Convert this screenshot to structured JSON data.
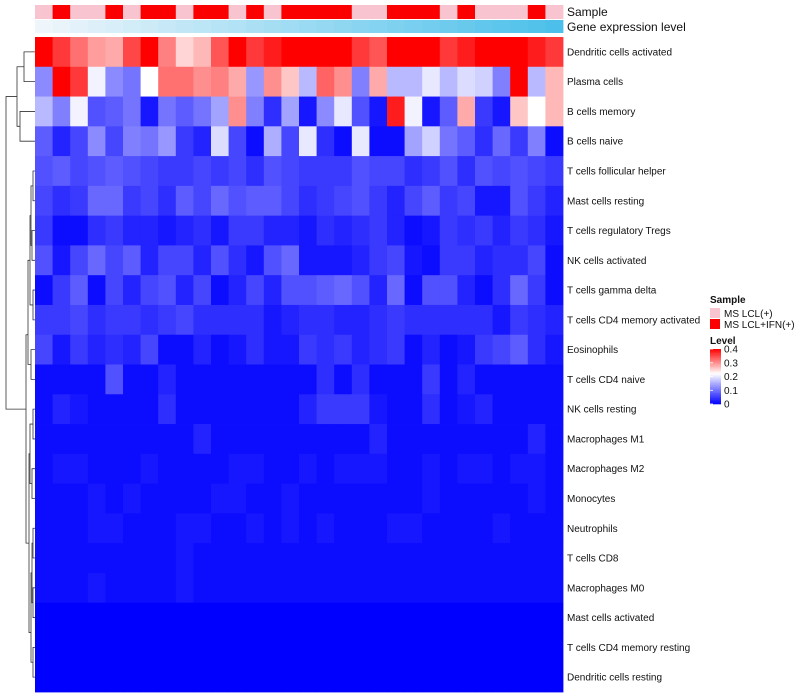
{
  "chart_data": {
    "type": "heatmap",
    "n_columns": 30,
    "rows": [
      "Dendritic cells activated",
      "Plasma cells",
      "B cells memory",
      "B cells naive",
      "T cells follicular helper",
      "Mast cells resting",
      "T cells regulatory  Tregs",
      "NK cells activated",
      "T cells gamma delta",
      "T cells CD4 memory activated",
      "Eosinophils",
      "T cells CD4 naive",
      "NK cells resting",
      "Macrophages M1",
      "Macrophages M2",
      "Monocytes",
      "Neutrophils",
      "T cells CD8",
      "Macrophages M0",
      "Mast cells activated",
      "T cells CD4 memory resting",
      "Dendritic cells resting"
    ],
    "values": [
      [
        0.42,
        0.36,
        0.32,
        0.29,
        0.28,
        0.35,
        0.4,
        0.31,
        0.25,
        0.27,
        0.34,
        0.42,
        0.36,
        0.38,
        0.4,
        0.42,
        0.4,
        0.46,
        0.36,
        0.34,
        0.4,
        0.42,
        0.4,
        0.36,
        0.38,
        0.42,
        0.44,
        0.4,
        0.38,
        0.36
      ],
      [
        0.12,
        0.43,
        0.36,
        0.21,
        0.12,
        0.1,
        0.22,
        0.32,
        0.32,
        0.3,
        0.31,
        0.28,
        0.13,
        0.3,
        0.26,
        0.16,
        0.33,
        0.3,
        0.11,
        0.28,
        0.16,
        0.16,
        0.2,
        0.16,
        0.19,
        0.18,
        0.11,
        0.44,
        0.16,
        0.27
      ],
      [
        0.16,
        0.11,
        0.21,
        0.07,
        0.08,
        0.1,
        0.02,
        0.1,
        0.08,
        0.1,
        0.14,
        0.3,
        0.11,
        0.04,
        0.14,
        0.02,
        0.12,
        0.2,
        0.07,
        0.02,
        0.38,
        0.21,
        0.02,
        0.08,
        0.28,
        0.05,
        0.02,
        0.26,
        0.22,
        0.27
      ],
      [
        0.08,
        0.03,
        0.06,
        0.12,
        0.06,
        0.11,
        0.1,
        0.13,
        0.05,
        0.03,
        0.19,
        0.06,
        0.01,
        0.15,
        0.06,
        0.2,
        0.04,
        0.01,
        0.2,
        0.01,
        0.01,
        0.14,
        0.18,
        0.1,
        0.08,
        0.04,
        0.09,
        0.05,
        0.11,
        0.01
      ],
      [
        0.07,
        0.08,
        0.06,
        0.07,
        0.08,
        0.07,
        0.06,
        0.05,
        0.05,
        0.06,
        0.05,
        0.06,
        0.04,
        0.07,
        0.06,
        0.05,
        0.05,
        0.05,
        0.07,
        0.06,
        0.06,
        0.04,
        0.05,
        0.07,
        0.04,
        0.07,
        0.06,
        0.07,
        0.06,
        0.05
      ],
      [
        0.06,
        0.04,
        0.05,
        0.09,
        0.09,
        0.05,
        0.06,
        0.04,
        0.08,
        0.06,
        0.09,
        0.07,
        0.08,
        0.08,
        0.06,
        0.04,
        0.05,
        0.06,
        0.07,
        0.05,
        0.03,
        0.06,
        0.08,
        0.05,
        0.06,
        0.02,
        0.02,
        0.07,
        0.05,
        0.03
      ],
      [
        0.05,
        0.01,
        0.01,
        0.04,
        0.05,
        0.03,
        0.03,
        0.02,
        0.03,
        0.04,
        0.02,
        0.05,
        0.05,
        0.03,
        0.03,
        0.02,
        0.04,
        0.03,
        0.04,
        0.05,
        0.03,
        0.01,
        0.02,
        0.05,
        0.04,
        0.05,
        0.03,
        0.05,
        0.04,
        0.02
      ],
      [
        0.07,
        0.02,
        0.06,
        0.09,
        0.06,
        0.08,
        0.03,
        0.06,
        0.06,
        0.03,
        0.07,
        0.04,
        0.02,
        0.07,
        0.09,
        0.02,
        0.02,
        0.02,
        0.03,
        0.05,
        0.06,
        0.02,
        0.01,
        0.05,
        0.05,
        0.03,
        0.04,
        0.04,
        0.06,
        0.01
      ],
      [
        0.01,
        0.05,
        0.08,
        0.01,
        0.06,
        0.03,
        0.06,
        0.07,
        0.03,
        0.06,
        0.01,
        0.03,
        0.06,
        0.03,
        0.07,
        0.07,
        0.08,
        0.09,
        0.07,
        0.03,
        0.09,
        0.01,
        0.07,
        0.07,
        0.03,
        0.01,
        0.04,
        0.09,
        0.05,
        0.01
      ],
      [
        0.05,
        0.05,
        0.06,
        0.04,
        0.05,
        0.05,
        0.04,
        0.05,
        0.06,
        0.04,
        0.04,
        0.04,
        0.04,
        0.02,
        0.03,
        0.04,
        0.04,
        0.03,
        0.03,
        0.04,
        0.05,
        0.04,
        0.04,
        0.04,
        0.04,
        0.04,
        0.02,
        0.05,
        0.04,
        0.03
      ],
      [
        0.06,
        0.02,
        0.05,
        0.03,
        0.04,
        0.03,
        0.06,
        0.01,
        0.01,
        0.03,
        0.01,
        0.02,
        0.04,
        0.02,
        0.02,
        0.05,
        0.04,
        0.05,
        0.03,
        0.04,
        0.05,
        0.01,
        0.03,
        0.01,
        0.02,
        0.05,
        0.06,
        0.08,
        0.04,
        0.02
      ],
      [
        0.01,
        0.01,
        0.01,
        0.01,
        0.07,
        0.01,
        0.01,
        0.03,
        0.01,
        0.01,
        0.01,
        0.01,
        0.01,
        0.01,
        0.01,
        0.01,
        0.04,
        0.01,
        0.04,
        0.01,
        0.01,
        0.01,
        0.05,
        0.01,
        0.03,
        0.01,
        0.01,
        0.01,
        0.01,
        0.01
      ],
      [
        0.01,
        0.03,
        0.02,
        0.01,
        0.01,
        0.01,
        0.01,
        0.04,
        0.01,
        0.01,
        0.01,
        0.01,
        0.01,
        0.01,
        0.01,
        0.03,
        0.05,
        0.05,
        0.05,
        0.02,
        0.01,
        0.01,
        0.04,
        0.01,
        0.02,
        0.03,
        0.01,
        0.01,
        0.01,
        0.01
      ],
      [
        0.01,
        0.01,
        0.01,
        0.01,
        0.01,
        0.01,
        0.01,
        0.01,
        0.01,
        0.03,
        0.01,
        0.01,
        0.01,
        0.01,
        0.01,
        0.01,
        0.01,
        0.01,
        0.01,
        0.03,
        0.01,
        0.01,
        0.01,
        0.01,
        0.01,
        0.01,
        0.01,
        0.01,
        0.03,
        0.01
      ],
      [
        0.01,
        0.02,
        0.02,
        0.01,
        0.01,
        0.01,
        0.02,
        0.01,
        0.01,
        0.01,
        0.01,
        0.02,
        0.02,
        0.01,
        0.01,
        0.02,
        0.01,
        0.02,
        0.02,
        0.02,
        0.01,
        0.01,
        0.02,
        0.01,
        0.02,
        0.02,
        0.01,
        0.02,
        0.02,
        0.01
      ],
      [
        0.01,
        0.01,
        0.01,
        0.02,
        0.01,
        0.02,
        0.01,
        0.01,
        0.01,
        0.01,
        0.02,
        0.02,
        0.01,
        0.01,
        0.02,
        0.01,
        0.01,
        0.01,
        0.01,
        0.01,
        0.01,
        0.01,
        0.02,
        0.01,
        0.01,
        0.01,
        0.01,
        0.01,
        0.02,
        0.01
      ],
      [
        0.01,
        0.01,
        0.01,
        0.02,
        0.02,
        0.01,
        0.01,
        0.01,
        0.02,
        0.02,
        0.01,
        0.01,
        0.02,
        0.01,
        0.02,
        0.01,
        0.02,
        0.01,
        0.01,
        0.01,
        0.02,
        0.02,
        0.01,
        0.01,
        0.01,
        0.01,
        0.02,
        0.01,
        0.01,
        0.01
      ],
      [
        0.01,
        0.01,
        0.01,
        0.01,
        0.01,
        0.01,
        0.01,
        0.01,
        0.02,
        0.01,
        0.01,
        0.01,
        0.01,
        0.01,
        0.01,
        0.01,
        0.01,
        0.01,
        0.01,
        0.01,
        0.01,
        0.01,
        0.01,
        0.01,
        0.01,
        0.01,
        0.01,
        0.01,
        0.01,
        0.01
      ],
      [
        0.01,
        0.01,
        0.01,
        0.02,
        0.01,
        0.01,
        0.01,
        0.01,
        0.02,
        0.01,
        0.01,
        0.01,
        0.01,
        0.01,
        0.01,
        0.01,
        0.01,
        0.01,
        0.01,
        0.01,
        0.01,
        0.01,
        0.01,
        0.01,
        0.01,
        0.01,
        0.01,
        0.01,
        0.01,
        0.01
      ],
      [
        0.0,
        0.0,
        0.0,
        0.0,
        0.0,
        0.0,
        0.0,
        0.0,
        0.0,
        0.0,
        0.0,
        0.0,
        0.0,
        0.0,
        0.0,
        0.0,
        0.0,
        0.0,
        0.0,
        0.0,
        0.0,
        0.0,
        0.0,
        0.0,
        0.0,
        0.0,
        0.0,
        0.0,
        0.0,
        0.0
      ],
      [
        0.0,
        0.0,
        0.0,
        0.0,
        0.0,
        0.0,
        0.0,
        0.0,
        0.0,
        0.0,
        0.0,
        0.0,
        0.0,
        0.0,
        0.0,
        0.0,
        0.0,
        0.0,
        0.0,
        0.0,
        0.0,
        0.0,
        0.0,
        0.0,
        0.0,
        0.0,
        0.0,
        0.0,
        0.0,
        0.0
      ],
      [
        0.0,
        0.0,
        0.0,
        0.0,
        0.0,
        0.0,
        0.0,
        0.0,
        0.0,
        0.0,
        0.0,
        0.0,
        0.0,
        0.0,
        0.0,
        0.0,
        0.0,
        0.0,
        0.0,
        0.0,
        0.0,
        0.0,
        0.0,
        0.0,
        0.0,
        0.0,
        0.0,
        0.0,
        0.0,
        0.0
      ]
    ],
    "annotations": [
      {
        "label": "Sample",
        "type": "categorical",
        "values": [
          "MS LCL(+)",
          "MS LCL+IFN(+)",
          "MS LCL(+)",
          "MS LCL(+)",
          "MS LCL+IFN(+)",
          "MS LCL(+)",
          "MS LCL+IFN(+)",
          "MS LCL+IFN(+)",
          "MS LCL(+)",
          "MS LCL+IFN(+)",
          "MS LCL+IFN(+)",
          "MS LCL(+)",
          "MS LCL+IFN(+)",
          "MS LCL(+)",
          "MS LCL+IFN(+)",
          "MS LCL+IFN(+)",
          "MS LCL+IFN(+)",
          "MS LCL+IFN(+)",
          "MS LCL(+)",
          "MS LCL(+)",
          "MS LCL+IFN(+)",
          "MS LCL+IFN(+)",
          "MS LCL+IFN(+)",
          "MS LCL(+)",
          "MS LCL+IFN(+)",
          "MS LCL(+)",
          "MS LCL(+)",
          "MS LCL(+)",
          "MS LCL+IFN(+)",
          "MS LCL(+)"
        ]
      },
      {
        "label": "Gene expression level",
        "type": "gradient",
        "colors": [
          "#eef6fb",
          "#4cc0ea"
        ]
      }
    ],
    "legends": {
      "sample": {
        "title": "Sample",
        "items": [
          {
            "label": "MS LCL(+)",
            "color": "#f8c4cf"
          },
          {
            "label": "MS LCL+IFN(+)",
            "color": "#fb0000"
          }
        ]
      },
      "level": {
        "title": "Level",
        "ticks": [
          "0.4",
          "0.3",
          "0.2",
          "0.1",
          "0"
        ],
        "tick_values": [
          0.4,
          0.3,
          0.2,
          0.1,
          0.0
        ],
        "range": [
          0,
          0.4
        ]
      }
    },
    "colormap": {
      "low": "#0000ff",
      "mid": "#ffffff",
      "high": "#ff0000",
      "mid_value": 0.22
    },
    "row_dendrogram": true,
    "column_dendrogram": false
  }
}
